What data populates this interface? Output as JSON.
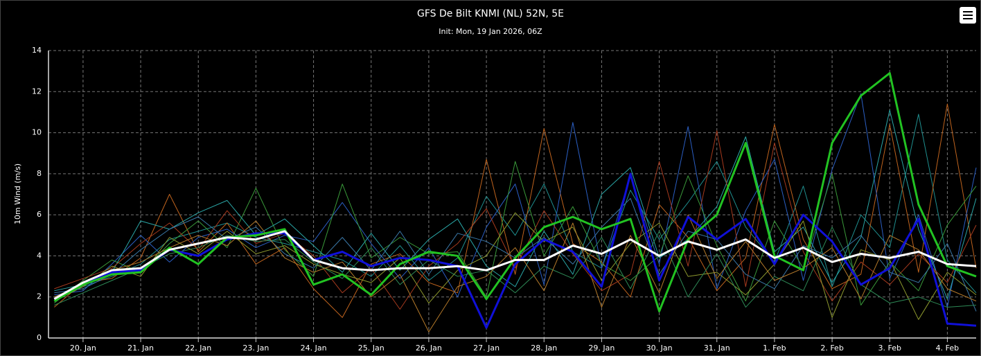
{
  "chart_data": {
    "type": "line",
    "title": "GFS De Bilt KNMI (NL) 52N, 5E",
    "subtitle": "Init: Mon, 19 Jan 2026, 06Z",
    "y_label": "10m Wind (m/s)",
    "x": [
      19.5,
      20,
      20.5,
      21,
      21.5,
      22,
      22.5,
      23,
      23.5,
      24,
      24.5,
      25,
      25.5,
      26,
      26.5,
      27,
      27.5,
      28,
      28.5,
      29,
      29.5,
      30,
      30.5,
      31,
      31.5,
      32,
      32.5,
      33,
      33.5,
      34,
      34.5,
      35,
      35.5
    ],
    "xlim": [
      19.4,
      35.5
    ],
    "xticks": [
      {
        "value": 20,
        "label": "20. Jan"
      },
      {
        "value": 21,
        "label": "21. Jan"
      },
      {
        "value": 22,
        "label": "22. Jan"
      },
      {
        "value": 23,
        "label": "23. Jan"
      },
      {
        "value": 24,
        "label": "24. Jan"
      },
      {
        "value": 25,
        "label": "25. Jan"
      },
      {
        "value": 26,
        "label": "26. Jan"
      },
      {
        "value": 27,
        "label": "27. Jan"
      },
      {
        "value": 28,
        "label": "28. Jan"
      },
      {
        "value": 29,
        "label": "29. Jan"
      },
      {
        "value": 30,
        "label": "30. Jan"
      },
      {
        "value": 31,
        "label": "31. Jan"
      },
      {
        "value": 32,
        "label": "1. Feb"
      },
      {
        "value": 33,
        "label": "2. Feb"
      },
      {
        "value": 34,
        "label": "3. Feb"
      },
      {
        "value": 35,
        "label": "4. Feb"
      }
    ],
    "ylim": [
      0,
      14
    ],
    "yticks": [
      0,
      2,
      4,
      6,
      8,
      10,
      12,
      14
    ],
    "grid": true,
    "series": [
      {
        "color": "#1f8f8f",
        "values": [
          2.0,
          2.5,
          3.0,
          3.6,
          4.8,
          5.2,
          5.6,
          4.9,
          4.6,
          4.2,
          3.8,
          3.0,
          4.5,
          2.8,
          3.9,
          6.9,
          5.0,
          7.5,
          4.2,
          3.4,
          7.2,
          4.8,
          6.6,
          8.6,
          5.4,
          3.7,
          7.4,
          2.5,
          6.0,
          4.4,
          10.9,
          3.8,
          2.2
        ]
      },
      {
        "color": "#c0641e",
        "values": [
          1.5,
          2.7,
          2.9,
          3.9,
          7.0,
          4.2,
          5.6,
          3.6,
          4.4,
          2.4,
          1.0,
          3.6,
          4.1,
          2.7,
          2.2,
          8.7,
          3.1,
          10.2,
          4.6,
          3.7,
          2.0,
          6.5,
          4.9,
          2.3,
          3.9,
          10.4,
          4.8,
          2.4,
          3.1,
          10.4,
          3.2,
          11.4,
          3.4
        ]
      },
      {
        "color": "#2b5fc4",
        "values": [
          2.1,
          2.3,
          3.6,
          5.0,
          3.7,
          4.9,
          5.3,
          4.4,
          5.0,
          4.7,
          6.6,
          4.6,
          2.9,
          4.4,
          2.0,
          5.4,
          7.5,
          2.6,
          10.5,
          3.4,
          7.9,
          3.6,
          10.3,
          2.4,
          6.2,
          8.7,
          2.8,
          8.2,
          11.9,
          2.9,
          6.0,
          1.5,
          8.3
        ]
      },
      {
        "color": "#3a9a3a",
        "values": [
          1.7,
          2.8,
          3.8,
          3.2,
          4.6,
          5.7,
          4.4,
          7.3,
          4.3,
          3.0,
          7.5,
          3.9,
          4.9,
          4.1,
          4.2,
          2.0,
          8.6,
          4.0,
          6.4,
          3.6,
          2.8,
          4.0,
          7.9,
          4.5,
          1.8,
          5.7,
          3.4,
          8.0,
          1.6,
          3.7,
          2.3,
          5.5,
          7.4
        ]
      },
      {
        "color": "#2aa6a6",
        "values": [
          2.3,
          2.6,
          3.2,
          5.7,
          5.3,
          6.1,
          6.7,
          5.0,
          5.8,
          4.5,
          3.2,
          5.1,
          3.3,
          4.8,
          5.8,
          3.5,
          2.5,
          5.2,
          3.1,
          7.0,
          8.3,
          3.9,
          4.8,
          6.4,
          9.8,
          4.2,
          5.4,
          2.7,
          4.9,
          11.1,
          5.3,
          1.9,
          6.8
        ]
      },
      {
        "color": "#a63a1e",
        "values": [
          2.4,
          2.9,
          3.4,
          4.6,
          5.6,
          4.3,
          6.2,
          4.6,
          5.1,
          4.0,
          2.2,
          3.4,
          1.4,
          3.5,
          4.6,
          6.3,
          3.4,
          6.2,
          4.1,
          2.3,
          3.1,
          8.6,
          3.5,
          10.1,
          2.5,
          9.5,
          4.2,
          1.8,
          3.7,
          2.6,
          4.1,
          2.7,
          5.5
        ]
      },
      {
        "color": "#8e9a2e",
        "values": [
          1.8,
          2.5,
          3.5,
          3.0,
          4.9,
          4.1,
          5.2,
          4.1,
          4.5,
          3.6,
          3.1,
          2.7,
          3.9,
          1.7,
          3.3,
          4.0,
          6.1,
          4.7,
          5.4,
          2.8,
          4.6,
          5.6,
          3.0,
          3.2,
          2.1,
          3.6,
          5.7,
          1.0,
          4.3,
          3.8,
          0.9,
          3.2,
          2.1
        ]
      },
      {
        "color": "#3a78a8",
        "values": [
          2.2,
          2.4,
          3.1,
          4.3,
          5.3,
          5.9,
          4.8,
          5.4,
          4.1,
          3.4,
          4.9,
          3.3,
          5.2,
          3.1,
          5.1,
          4.7,
          3.9,
          4.9,
          3.6,
          5.4,
          6.8,
          3.1,
          5.2,
          4.8,
          3.1,
          2.4,
          4.5,
          3.9,
          5.0,
          3.2,
          2.7,
          4.6,
          1.3
        ]
      },
      {
        "color": "#2e8b57",
        "values": [
          1.6,
          2.2,
          2.8,
          3.4,
          4.1,
          4.4,
          5.0,
          4.7,
          4.8,
          3.7,
          2.9,
          4.4,
          2.6,
          3.8,
          3.0,
          3.3,
          2.2,
          3.5,
          2.9,
          4.9,
          2.4,
          5.2,
          2.0,
          4.1,
          1.5,
          3.0,
          2.3,
          5.4,
          2.6,
          1.7,
          2.0,
          1.5,
          1.6
        ]
      },
      {
        "color": "#b57a2a",
        "values": [
          2.0,
          2.6,
          3.3,
          3.7,
          4.4,
          5.0,
          4.5,
          5.7,
          3.9,
          3.2,
          3.7,
          2.0,
          3.1,
          0.3,
          2.5,
          3.0,
          4.4,
          2.3,
          5.6,
          1.5,
          5.0,
          2.2,
          6.0,
          2.9,
          4.7,
          2.8,
          3.4,
          4.4,
          1.9,
          5.0,
          4.3,
          2.4,
          1.8
        ]
      },
      {
        "color": "#1010d8",
        "values": [
          1.9,
          2.6,
          3.2,
          3.3,
          4.3,
          4.0,
          4.8,
          5.1,
          5.1,
          3.8,
          4.2,
          3.5,
          3.9,
          3.8,
          3.5,
          0.5,
          3.6,
          4.8,
          4.2,
          2.5,
          8.0,
          2.8,
          5.9,
          4.8,
          5.8,
          3.6,
          6.0,
          4.7,
          2.6,
          3.4,
          5.8,
          0.7,
          0.6
        ]
      },
      {
        "color": "#22c322",
        "values": [
          1.8,
          2.6,
          3.1,
          3.2,
          4.4,
          3.6,
          4.9,
          5.0,
          5.3,
          2.6,
          3.1,
          2.1,
          3.6,
          4.2,
          4.0,
          1.9,
          3.9,
          5.4,
          5.9,
          5.3,
          5.8,
          1.3,
          4.8,
          6.0,
          9.5,
          4.0,
          3.3,
          9.5,
          11.8,
          12.9,
          6.5,
          3.5,
          3.0
        ]
      },
      {
        "color": "#ffffff",
        "values": [
          1.9,
          2.7,
          3.3,
          3.4,
          4.3,
          4.6,
          4.9,
          4.8,
          5.2,
          3.8,
          3.4,
          3.3,
          3.4,
          3.4,
          3.5,
          3.3,
          3.8,
          3.8,
          4.5,
          4.1,
          4.8,
          4.0,
          4.7,
          4.3,
          4.8,
          3.9,
          4.4,
          3.7,
          4.1,
          3.9,
          4.2,
          3.6,
          3.5
        ]
      }
    ]
  }
}
